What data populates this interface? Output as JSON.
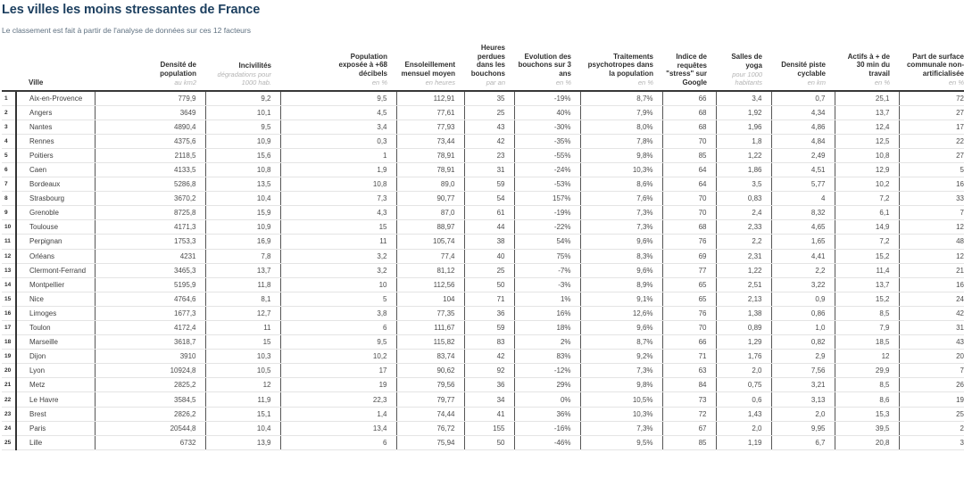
{
  "page": {
    "title": "Les villes les moins stressantes de France",
    "subtitle": "Le classement est fait à partir de l'analyse de données sur ces 12 facteurs"
  },
  "colors": {
    "title_navy": "#1c3f5f",
    "subtitle_gray": "#5f7181",
    "header_text": "#2e2e2e",
    "unit_text": "#b3b3b3",
    "cell_text": "#4d4d4d",
    "divider_line": "#565656",
    "row_line": "#e4e4e4",
    "header_rule": "#383838",
    "background": "#ffffff"
  },
  "chart_data": {
    "type": "table",
    "title": "Les villes les moins stressantes de France",
    "subtitle": "Le classement est fait à partir de l'analyse de données sur ces 12 facteurs",
    "rank_header": "",
    "ville_header": "Ville",
    "columns": [
      {
        "label": "Densité de\npopulation",
        "unit": "au km2"
      },
      {
        "label": "Incivilités",
        "unit": "dégradations pour\n1000 hab."
      },
      {
        "label": "Population\nexposée à +68\ndécibels",
        "unit": "en %"
      },
      {
        "label": "Ensoleillement\nmensuel moyen",
        "unit": "en heures"
      },
      {
        "label": "Heures perdues\ndans les\nbouchons",
        "unit": "par an"
      },
      {
        "label": "Evolution des\nbouchons sur 3\nans",
        "unit": "en %"
      },
      {
        "label": "Traitements\npsychotropes dans\nla population",
        "unit": "en %"
      },
      {
        "label": "Indice de\nrequêtes\n\"stress\" sur\nGoogle",
        "unit": ""
      },
      {
        "label": "Salles de\nyoga",
        "unit": "pour 1000\nhabitants"
      },
      {
        "label": "Densité piste\ncyclable",
        "unit": "en km"
      },
      {
        "label": "Actifs à + de\n30 min du\ntravail",
        "unit": "en %"
      },
      {
        "label": "Part de surface\ncommunale non-\nartificialisée",
        "unit": "en %"
      }
    ],
    "rows": [
      {
        "rank": "1",
        "ville": "Aix-en-Provence",
        "values": [
          "779,9",
          "9,2",
          "9,5",
          "112,91",
          "35",
          "-19%",
          "8,7%",
          "66",
          "3,4",
          "0,7",
          "25,1",
          "72"
        ]
      },
      {
        "rank": "2",
        "ville": "Angers",
        "values": [
          "3649",
          "10,1",
          "4,5",
          "77,61",
          "25",
          "40%",
          "7,9%",
          "68",
          "1,92",
          "4,34",
          "13,7",
          "27"
        ]
      },
      {
        "rank": "3",
        "ville": "Nantes",
        "values": [
          "4890,4",
          "9,5",
          "3,4",
          "77,93",
          "43",
          "-30%",
          "8,0%",
          "68",
          "1,96",
          "4,86",
          "12,4",
          "17"
        ]
      },
      {
        "rank": "4",
        "ville": "Rennes",
        "values": [
          "4375,6",
          "10,9",
          "0,3",
          "73,44",
          "42",
          "-35%",
          "7,8%",
          "70",
          "1,8",
          "4,84",
          "12,5",
          "22"
        ]
      },
      {
        "rank": "5",
        "ville": "Poitiers",
        "values": [
          "2118,5",
          "15,6",
          "1",
          "78,91",
          "23",
          "-55%",
          "9,8%",
          "85",
          "1,22",
          "2,49",
          "10,8",
          "27"
        ]
      },
      {
        "rank": "6",
        "ville": "Caen",
        "values": [
          "4133,5",
          "10,8",
          "1,9",
          "78,91",
          "31",
          "-24%",
          "10,3%",
          "64",
          "1,86",
          "4,51",
          "12,9",
          "5"
        ]
      },
      {
        "rank": "7",
        "ville": "Bordeaux",
        "values": [
          "5286,8",
          "13,5",
          "10,8",
          "89,0",
          "59",
          "-53%",
          "8,6%",
          "64",
          "3,5",
          "5,77",
          "10,2",
          "16"
        ]
      },
      {
        "rank": "8",
        "ville": "Strasbourg",
        "values": [
          "3670,2",
          "10,4",
          "7,3",
          "90,77",
          "54",
          "157%",
          "7,6%",
          "70",
          "0,83",
          "4",
          "7,2",
          "33"
        ]
      },
      {
        "rank": "9",
        "ville": "Grenoble",
        "values": [
          "8725,8",
          "15,9",
          "4,3",
          "87,0",
          "61",
          "-19%",
          "7,3%",
          "70",
          "2,4",
          "8,32",
          "6,1",
          "7"
        ]
      },
      {
        "rank": "10",
        "ville": "Toulouse",
        "values": [
          "4171,3",
          "10,9",
          "15",
          "88,97",
          "44",
          "-22%",
          "7,3%",
          "68",
          "2,33",
          "4,65",
          "14,9",
          "12"
        ]
      },
      {
        "rank": "11",
        "ville": "Perpignan",
        "values": [
          "1753,3",
          "16,9",
          "11",
          "105,74",
          "38",
          "54%",
          "9,6%",
          "76",
          "2,2",
          "1,65",
          "7,2",
          "48"
        ]
      },
      {
        "rank": "12",
        "ville": "Orléans",
        "values": [
          "4231",
          "7,8",
          "3,2",
          "77,4",
          "40",
          "75%",
          "8,3%",
          "69",
          "2,31",
          "4,41",
          "15,2",
          "12"
        ]
      },
      {
        "rank": "13",
        "ville": "Clermont-Ferrand",
        "values": [
          "3465,3",
          "13,7",
          "3,2",
          "81,12",
          "25",
          "-7%",
          "9,6%",
          "77",
          "1,22",
          "2,2",
          "11,4",
          "21"
        ]
      },
      {
        "rank": "14",
        "ville": "Montpellier",
        "values": [
          "5195,9",
          "11,8",
          "10",
          "112,56",
          "50",
          "-3%",
          "8,9%",
          "65",
          "2,51",
          "3,22",
          "13,7",
          "16"
        ]
      },
      {
        "rank": "15",
        "ville": "Nice",
        "values": [
          "4764,6",
          "8,1",
          "5",
          "104",
          "71",
          "1%",
          "9,1%",
          "65",
          "2,13",
          "0,9",
          "15,2",
          "24"
        ]
      },
      {
        "rank": "16",
        "ville": "Limoges",
        "values": [
          "1677,3",
          "12,7",
          "3,8",
          "77,35",
          "36",
          "16%",
          "12,6%",
          "76",
          "1,38",
          "0,86",
          "8,5",
          "42"
        ]
      },
      {
        "rank": "17",
        "ville": "Toulon",
        "values": [
          "4172,4",
          "11",
          "6",
          "111,67",
          "59",
          "18%",
          "9,6%",
          "70",
          "0,89",
          "1,0",
          "7,9",
          "31"
        ]
      },
      {
        "rank": "18",
        "ville": "Marseille",
        "values": [
          "3618,7",
          "15",
          "9,5",
          "115,82",
          "83",
          "2%",
          "8,7%",
          "66",
          "1,29",
          "0,82",
          "18,5",
          "43"
        ]
      },
      {
        "rank": "19",
        "ville": "Dijon",
        "values": [
          "3910",
          "10,3",
          "10,2",
          "83,74",
          "42",
          "83%",
          "9,2%",
          "71",
          "1,76",
          "2,9",
          "12",
          "20"
        ]
      },
      {
        "rank": "20",
        "ville": "Lyon",
        "values": [
          "10924,8",
          "10,5",
          "17",
          "90,62",
          "92",
          "-12%",
          "7,3%",
          "63",
          "2,0",
          "7,56",
          "29,9",
          "7"
        ]
      },
      {
        "rank": "21",
        "ville": "Metz",
        "values": [
          "2825,2",
          "12",
          "19",
          "79,56",
          "36",
          "29%",
          "9,8%",
          "84",
          "0,75",
          "3,21",
          "8,5",
          "26"
        ]
      },
      {
        "rank": "22",
        "ville": "Le Havre",
        "values": [
          "3584,5",
          "11,9",
          "22,3",
          "79,77",
          "34",
          "0%",
          "10,5%",
          "73",
          "0,6",
          "3,13",
          "8,6",
          "19"
        ]
      },
      {
        "rank": "23",
        "ville": "Brest",
        "values": [
          "2826,2",
          "15,1",
          "1,4",
          "74,44",
          "41",
          "36%",
          "10,3%",
          "72",
          "1,43",
          "2,0",
          "15,3",
          "25"
        ]
      },
      {
        "rank": "24",
        "ville": "Paris",
        "values": [
          "20544,8",
          "10,4",
          "13,4",
          "76,72",
          "155",
          "-16%",
          "7,3%",
          "67",
          "2,0",
          "9,95",
          "39,5",
          "2"
        ]
      },
      {
        "rank": "25",
        "ville": "Lille",
        "values": [
          "6732",
          "13,9",
          "6",
          "75,94",
          "50",
          "-46%",
          "9,5%",
          "85",
          "1,19",
          "6,7",
          "20,8",
          "3"
        ]
      }
    ]
  }
}
